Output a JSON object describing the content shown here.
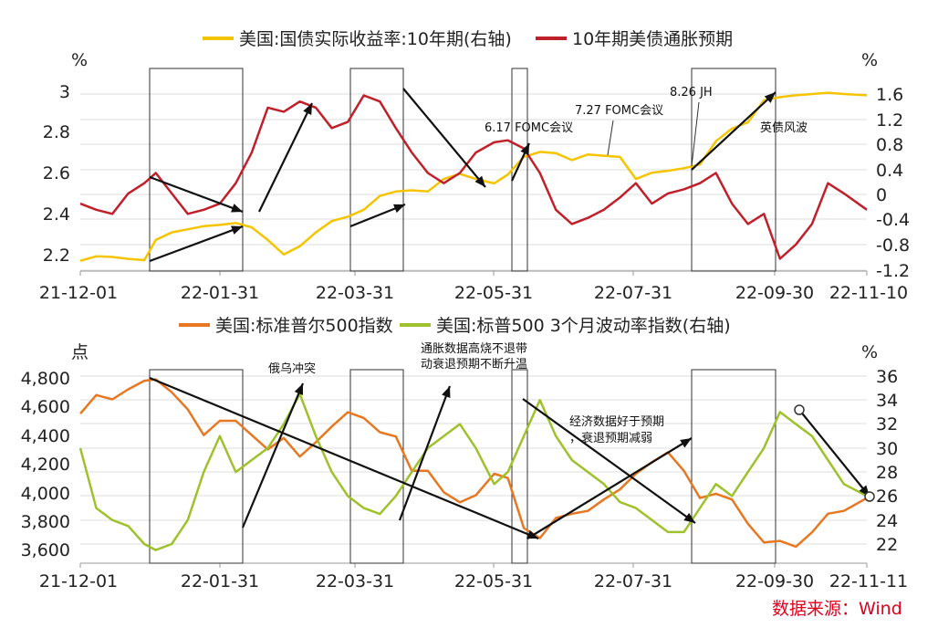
{
  "source": "数据来源：Wind",
  "chart_data": [
    {
      "type": "line",
      "x_ticks": [
        "21-12-01",
        "22-01-31",
        "22-03-31",
        "22-05-31",
        "22-07-31",
        "22-09-30",
        "22-11-10"
      ],
      "left_axis": {
        "unit": "%",
        "ticks": [
          "3",
          "2.8",
          "2.6",
          "2.4",
          "2.2"
        ],
        "ylim": [
          2.1,
          3.05
        ]
      },
      "right_axis": {
        "unit": "%",
        "ticks": [
          "1.6",
          "1.2",
          "0.8",
          "0.4",
          "0",
          "-0.4",
          "-0.8",
          "-1.2"
        ],
        "ylim": [
          -1.35,
          1.75
        ]
      },
      "series": [
        {
          "name": "美国:国债实际收益率:10年期(右轴)",
          "axis": "right",
          "color": "#f5c400",
          "x": [
            "2021-12-01",
            "2021-12-08",
            "2021-12-15",
            "2021-12-22",
            "2021-12-29",
            "2022-01-03",
            "2022-01-10",
            "2022-01-17",
            "2022-01-24",
            "2022-01-31",
            "2022-02-07",
            "2022-02-14",
            "2022-02-21",
            "2022-02-28",
            "2022-03-07",
            "2022-03-14",
            "2022-03-21",
            "2022-03-28",
            "2022-04-04",
            "2022-04-11",
            "2022-04-18",
            "2022-04-25",
            "2022-05-02",
            "2022-05-09",
            "2022-05-16",
            "2022-05-23",
            "2022-05-31",
            "2022-06-06",
            "2022-06-13",
            "2022-06-20",
            "2022-06-27",
            "2022-07-04",
            "2022-07-11",
            "2022-07-18",
            "2022-07-25",
            "2022-08-01",
            "2022-08-08",
            "2022-08-15",
            "2022-08-22",
            "2022-08-29",
            "2022-09-05",
            "2022-09-12",
            "2022-09-19",
            "2022-09-26",
            "2022-10-03",
            "2022-10-10",
            "2022-10-17",
            "2022-10-24",
            "2022-10-31",
            "2022-11-10"
          ],
          "values": [
            -1.05,
            -0.98,
            -0.99,
            -1.02,
            -1.04,
            -0.72,
            -0.6,
            -0.55,
            -0.5,
            -0.48,
            -0.45,
            -0.52,
            -0.72,
            -0.95,
            -0.82,
            -0.6,
            -0.42,
            -0.35,
            -0.24,
            -0.02,
            0.05,
            0.07,
            0.05,
            0.25,
            0.33,
            0.25,
            0.18,
            0.32,
            0.6,
            0.68,
            0.66,
            0.55,
            0.64,
            0.62,
            0.6,
            0.25,
            0.35,
            0.38,
            0.42,
            0.48,
            0.85,
            1.05,
            1.15,
            1.5,
            1.55,
            1.58,
            1.6,
            1.62,
            1.6,
            1.58
          ]
        },
        {
          "name": "10年期美债通胀预期",
          "axis": "left",
          "color": "#c0202a",
          "x": [
            "2021-12-01",
            "2021-12-08",
            "2021-12-15",
            "2021-12-22",
            "2021-12-29",
            "2022-01-03",
            "2022-01-10",
            "2022-01-17",
            "2022-01-24",
            "2022-01-31",
            "2022-02-07",
            "2022-02-14",
            "2022-02-21",
            "2022-02-28",
            "2022-03-07",
            "2022-03-14",
            "2022-03-21",
            "2022-03-28",
            "2022-04-04",
            "2022-04-11",
            "2022-04-18",
            "2022-04-25",
            "2022-05-02",
            "2022-05-09",
            "2022-05-16",
            "2022-05-23",
            "2022-05-31",
            "2022-06-06",
            "2022-06-13",
            "2022-06-20",
            "2022-06-27",
            "2022-07-04",
            "2022-07-11",
            "2022-07-18",
            "2022-07-25",
            "2022-08-01",
            "2022-08-08",
            "2022-08-15",
            "2022-08-22",
            "2022-08-29",
            "2022-09-05",
            "2022-09-12",
            "2022-09-19",
            "2022-09-26",
            "2022-10-03",
            "2022-10-10",
            "2022-10-17",
            "2022-10-24",
            "2022-10-31",
            "2022-11-10"
          ],
          "values": [
            2.45,
            2.42,
            2.4,
            2.5,
            2.55,
            2.6,
            2.5,
            2.4,
            2.42,
            2.45,
            2.55,
            2.7,
            2.92,
            2.9,
            2.95,
            2.92,
            2.82,
            2.85,
            2.98,
            2.95,
            2.82,
            2.7,
            2.6,
            2.55,
            2.6,
            2.7,
            2.75,
            2.76,
            2.72,
            2.6,
            2.42,
            2.35,
            2.38,
            2.42,
            2.48,
            2.55,
            2.45,
            2.5,
            2.52,
            2.55,
            2.6,
            2.45,
            2.35,
            2.4,
            2.18,
            2.25,
            2.35,
            2.55,
            2.5,
            2.42
          ]
        }
      ]
    },
    {
      "type": "line",
      "x_ticks": [
        "21-12-01",
        "22-01-31",
        "22-03-31",
        "22-05-31",
        "22-07-31",
        "22-09-30",
        "22-11-11"
      ],
      "left_axis": {
        "unit": "点",
        "ticks": [
          "4,800",
          "4,600",
          "4,400",
          "4,200",
          "4,000",
          "3,800",
          "3,600"
        ],
        "ylim": [
          3500,
          4850
        ]
      },
      "right_axis": {
        "unit": "%",
        "ticks": [
          "36",
          "34",
          "32",
          "30",
          "28",
          "26",
          "24",
          "22"
        ],
        "ylim": [
          20.5,
          36.5
        ]
      },
      "series": [
        {
          "name": "美国:标准普尔500指数",
          "axis": "left",
          "color": "#e87722",
          "x": [
            "2021-12-01",
            "2021-12-08",
            "2021-12-15",
            "2021-12-22",
            "2021-12-29",
            "2022-01-03",
            "2022-01-10",
            "2022-01-17",
            "2022-01-24",
            "2022-01-31",
            "2022-02-07",
            "2022-02-14",
            "2022-02-21",
            "2022-02-28",
            "2022-03-07",
            "2022-03-14",
            "2022-03-21",
            "2022-03-28",
            "2022-04-04",
            "2022-04-11",
            "2022-04-18",
            "2022-04-25",
            "2022-05-02",
            "2022-05-09",
            "2022-05-16",
            "2022-05-23",
            "2022-05-31",
            "2022-06-06",
            "2022-06-13",
            "2022-06-20",
            "2022-06-27",
            "2022-07-04",
            "2022-07-11",
            "2022-07-18",
            "2022-07-25",
            "2022-08-01",
            "2022-08-08",
            "2022-08-15",
            "2022-08-22",
            "2022-08-29",
            "2022-09-05",
            "2022-09-12",
            "2022-09-19",
            "2022-09-26",
            "2022-10-03",
            "2022-10-10",
            "2022-10-17",
            "2022-10-24",
            "2022-10-31",
            "2022-11-10"
          ],
          "values": [
            4550,
            4680,
            4650,
            4720,
            4780,
            4790,
            4700,
            4580,
            4400,
            4500,
            4500,
            4400,
            4300,
            4380,
            4250,
            4350,
            4460,
            4560,
            4520,
            4420,
            4390,
            4150,
            4150,
            4000,
            3930,
            3980,
            4130,
            4100,
            3750,
            3680,
            3820,
            3850,
            3870,
            3950,
            4020,
            4130,
            4210,
            4280,
            4150,
            3960,
            3990,
            3950,
            3780,
            3650,
            3660,
            3620,
            3720,
            3850,
            3870,
            3960
          ]
        },
        {
          "name": "美国:标普500 3个月波动率指数(右轴)",
          "axis": "right",
          "color": "#9ec12c",
          "x": [
            "2021-12-01",
            "2021-12-08",
            "2021-12-15",
            "2021-12-22",
            "2021-12-29",
            "2022-01-03",
            "2022-01-10",
            "2022-01-17",
            "2022-01-24",
            "2022-01-31",
            "2022-02-07",
            "2022-02-14",
            "2022-02-21",
            "2022-02-28",
            "2022-03-07",
            "2022-03-14",
            "2022-03-21",
            "2022-03-28",
            "2022-04-04",
            "2022-04-11",
            "2022-04-18",
            "2022-04-25",
            "2022-05-02",
            "2022-05-09",
            "2022-05-16",
            "2022-05-23",
            "2022-05-31",
            "2022-06-06",
            "2022-06-13",
            "2022-06-20",
            "2022-06-27",
            "2022-07-04",
            "2022-07-11",
            "2022-07-18",
            "2022-07-25",
            "2022-08-01",
            "2022-08-08",
            "2022-08-15",
            "2022-08-22",
            "2022-08-29",
            "2022-09-05",
            "2022-09-12",
            "2022-09-19",
            "2022-09-26",
            "2022-10-03",
            "2022-10-10",
            "2022-10-17",
            "2022-10-24",
            "2022-10-31",
            "2022-11-10"
          ],
          "values": [
            30,
            25,
            24,
            23.5,
            22,
            21.5,
            22,
            24,
            28,
            31,
            28,
            29,
            30,
            32,
            34.5,
            31,
            28,
            26,
            25,
            24.5,
            26,
            28,
            30,
            31,
            32,
            30,
            27,
            28,
            31,
            34,
            31,
            29,
            28,
            27,
            25.5,
            25,
            24,
            23,
            23,
            25,
            27,
            26,
            28,
            30,
            33,
            32,
            31,
            29,
            27,
            26
          ]
        }
      ]
    }
  ],
  "top_chart": {
    "legend": [
      "美国:国债实际收益率:10年期(右轴)",
      "10年期美债通胀预期"
    ],
    "annotations": [
      "6.17 FOMC会议",
      "7.27 FOMC会议",
      "8.26 JH",
      "英债风波"
    ]
  },
  "bottom_chart": {
    "legend": [
      "美国:标准普尔500指数",
      "美国:标普500 3个月波动率指数(右轴)"
    ],
    "annotations": [
      "俄乌冲突",
      "通胀数据高烧不退带",
      "动衰退预期不断升温",
      "经济数据好于预期",
      "，衰退预期减弱"
    ]
  }
}
